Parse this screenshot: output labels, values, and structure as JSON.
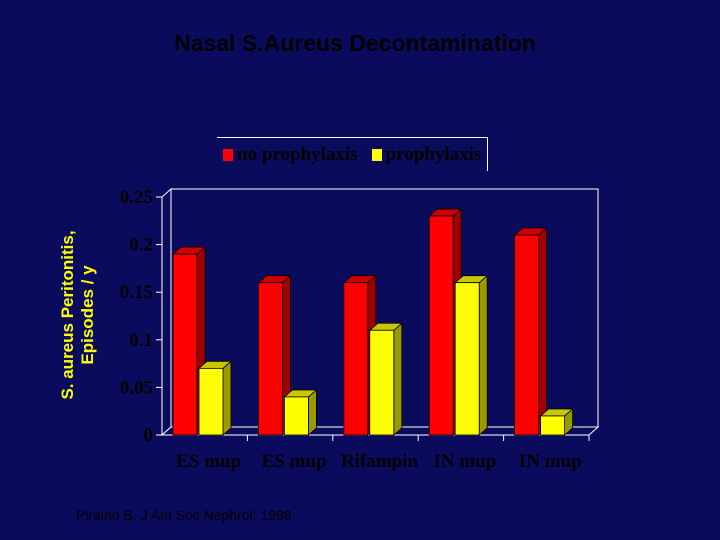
{
  "title": "Nasal S.Aureus Decontamination",
  "citation": "Piraino B,  J Am Soc Nephrol, 1998",
  "chart_data": {
    "type": "bar",
    "title": "Nasal S.Aureus Decontamination",
    "ylabel_lines": [
      "S. aureus Peritonitis,",
      "Episodes / y"
    ],
    "xlabel": "",
    "categories": [
      "ES mup",
      "ES mup",
      "Rifampin",
      "IN mup",
      "IN mup"
    ],
    "series": [
      {
        "name": "no prophylaxis",
        "color": "#ff0000",
        "values": [
          0.19,
          0.16,
          0.16,
          0.23,
          0.21
        ]
      },
      {
        "name": "prophylaxis",
        "color": "#ffff00",
        "values": [
          0.07,
          0.04,
          0.11,
          0.16,
          0.02
        ]
      }
    ],
    "ylim": [
      0,
      0.25
    ],
    "yticks": [
      "0",
      "0.05",
      "0.1",
      "0.15",
      "0.2",
      "0.25"
    ],
    "grid": false,
    "legend_position": "top"
  }
}
